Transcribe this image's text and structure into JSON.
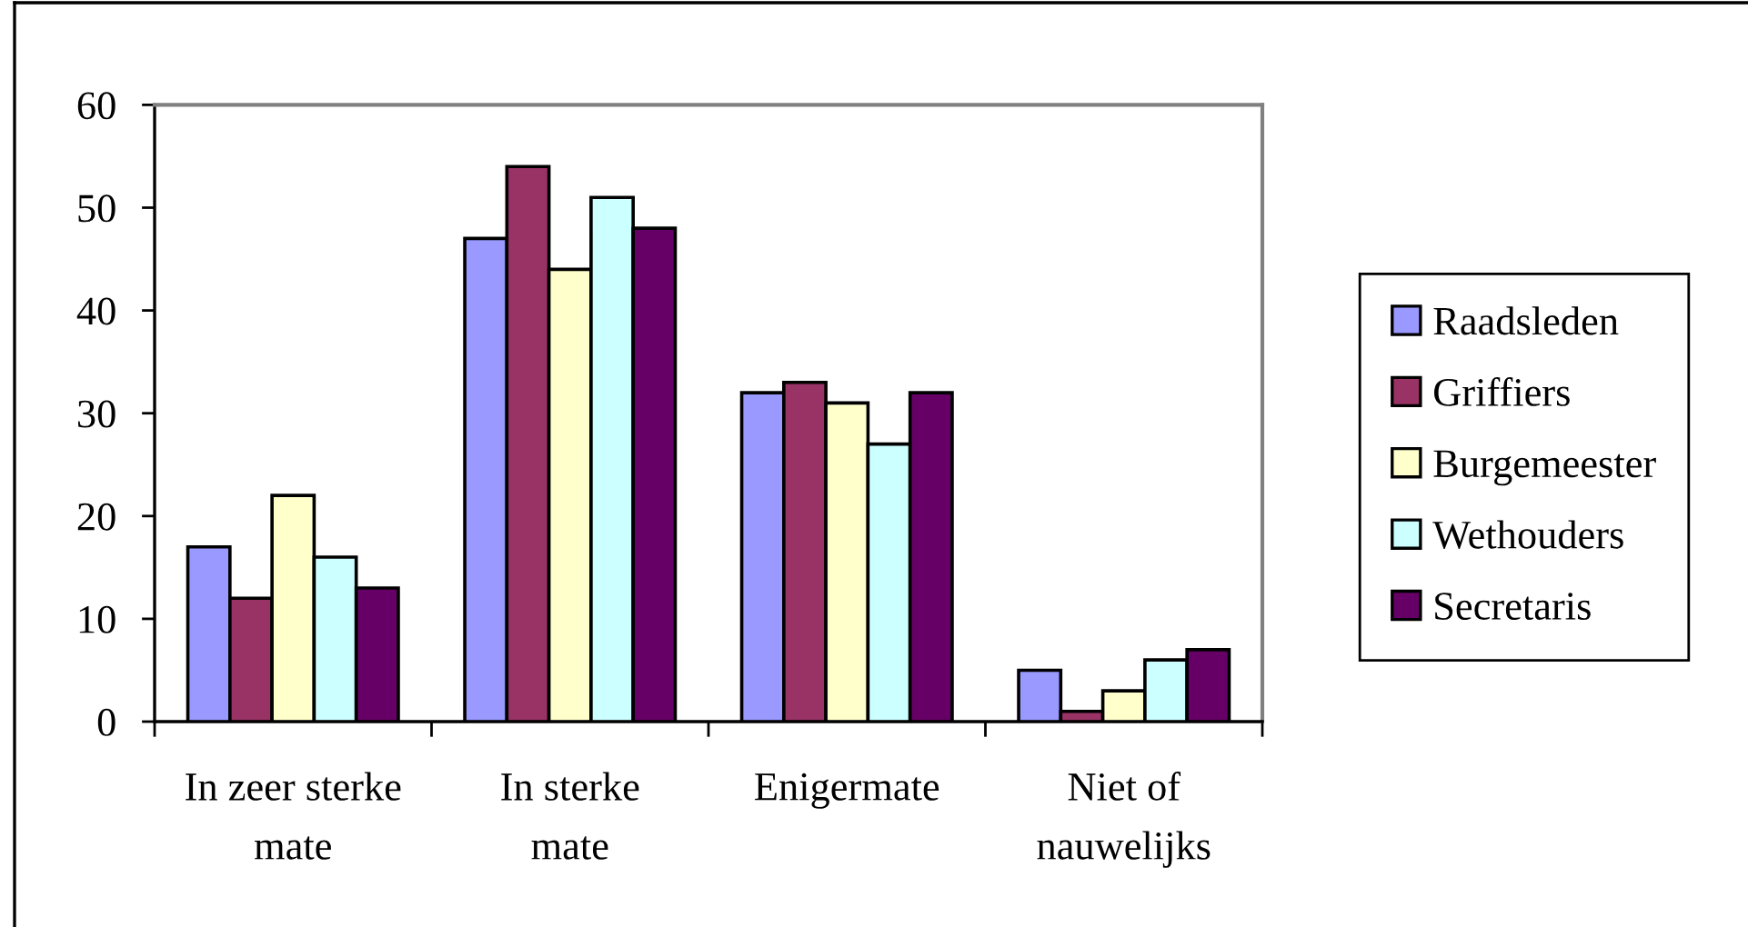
{
  "chart_data": {
    "type": "bar",
    "categories": [
      "In zeer sterke mate",
      "In sterke mate",
      "Enigermate",
      "Niet of nauwelijks"
    ],
    "series": [
      {
        "name": "Raadsleden",
        "color": "#9999ff",
        "values": [
          17,
          47,
          32,
          5
        ]
      },
      {
        "name": "Griffiers",
        "color": "#993366",
        "values": [
          12,
          54,
          33,
          1
        ]
      },
      {
        "name": "Burgemeester",
        "color": "#ffffcc",
        "values": [
          22,
          44,
          31,
          3
        ]
      },
      {
        "name": "Wethouders",
        "color": "#ccffff",
        "values": [
          16,
          51,
          27,
          6
        ]
      },
      {
        "name": "Secretaris",
        "color": "#660066",
        "values": [
          13,
          48,
          32,
          7
        ]
      }
    ],
    "ylim": [
      0,
      60
    ],
    "yticks": [
      0,
      10,
      20,
      30,
      40,
      50,
      60
    ],
    "grid": false,
    "legend": "right"
  }
}
